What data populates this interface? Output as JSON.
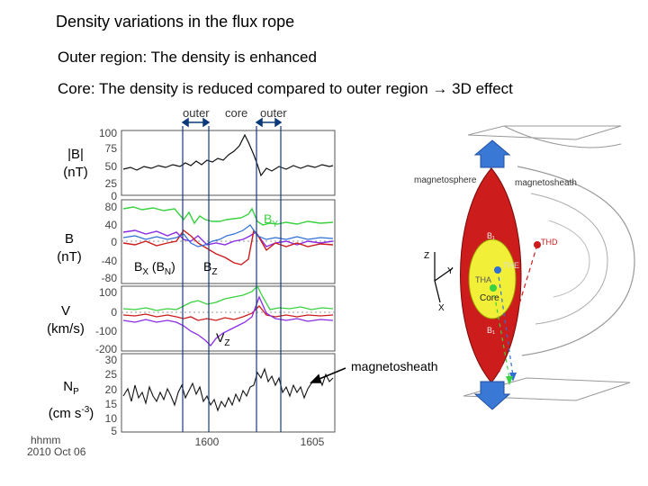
{
  "title": "Density variations in the flux rope",
  "bullet_outer": "Outer region: The density is enhanced",
  "bullet_core": "Core: The density is reduced compared to outer region → 3D effect",
  "regions": [
    "outer",
    "core",
    "outer"
  ],
  "panels": [
    {
      "name": "|B|",
      "unit": "(nT)",
      "ticks": [
        "100",
        "75",
        "50",
        "25",
        "0"
      ]
    },
    {
      "name": "B",
      "unit": "(nT)",
      "ticks": [
        "80",
        "40",
        "0",
        "-40",
        "-80"
      ]
    },
    {
      "name": "V",
      "unit": "(km/s)",
      "ticks": [
        "100",
        "0",
        "-100",
        "-200"
      ]
    },
    {
      "name": "N",
      "sub": "P",
      "unit_pre": "(cm s",
      "unit_sup": "-3",
      "unit_post": ")",
      "ticks": [
        "30",
        "25",
        "20",
        "15",
        "10",
        "5"
      ]
    }
  ],
  "annotations": {
    "by": "B",
    "by_sub": "Y",
    "bx": "B",
    "bx_sub": "X",
    "bn": " (B",
    "bn_sub": "N",
    "bn_close": ")",
    "bz": "B",
    "bz_sub": "Z",
    "vz": "V",
    "vz_sub": "Z",
    "magnetosheath": "magnetosheath"
  },
  "time_axis": {
    "label1": "hhmm",
    "label2": "2010 Oct 06",
    "ticks": [
      "1600",
      "1605"
    ]
  },
  "diagram": {
    "magnetosphere": "magnetosphere",
    "magnetosheath": "magnetosheath",
    "core": "Core",
    "thd": "THD",
    "the": "THE",
    "tha": "THA",
    "bl_top": "B₁",
    "bl_bottom": "B₁",
    "axes": [
      "Z",
      "Y",
      "X"
    ]
  },
  "colors": {
    "red": "#cc1c1c",
    "green": "#39d13f",
    "purple": "#8a2be2",
    "blue": "#2f6fd6",
    "yellow": "#f1ef38"
  }
}
